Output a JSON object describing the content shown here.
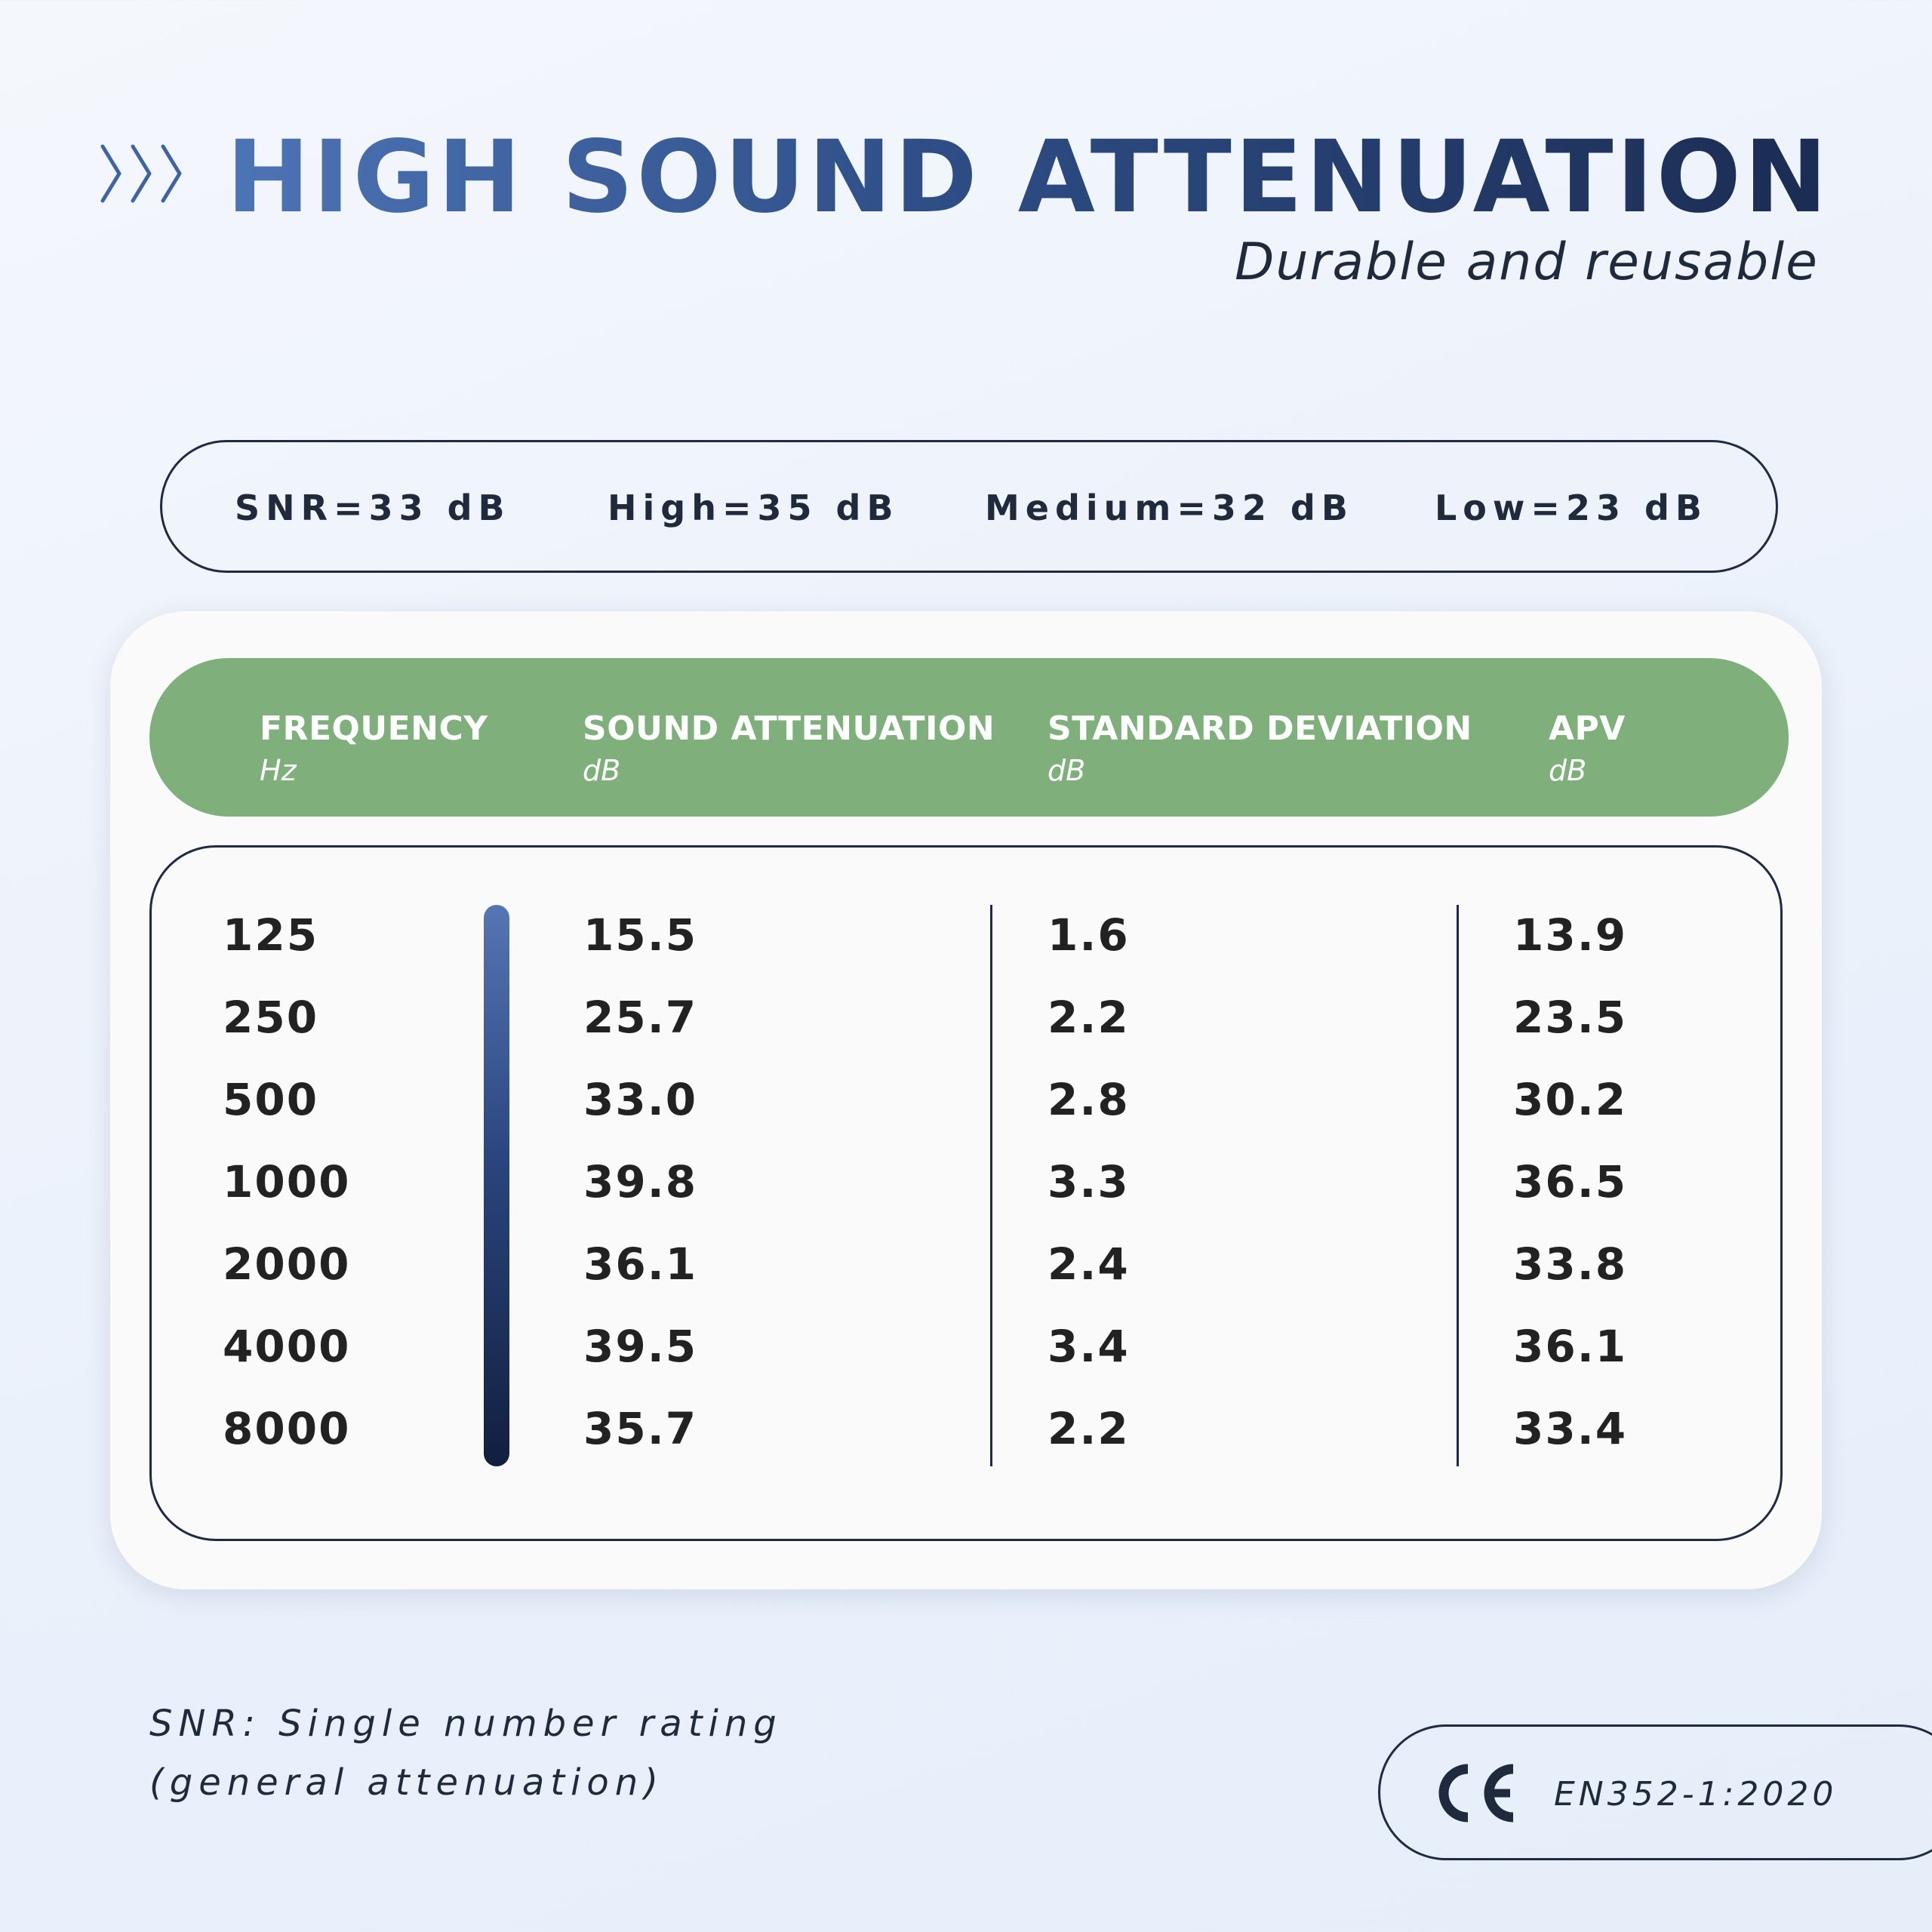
{
  "header": {
    "title": "HIGH SOUND ATTENUATION",
    "subtitle": "Durable and reusable",
    "icon": "triple-chevron-right-icon"
  },
  "ratings": {
    "snr": "SNR=33 dB",
    "high": "High=35 dB",
    "medium": "Medium=32 dB",
    "low": "Low=23 dB"
  },
  "table": {
    "columns": [
      {
        "title": "FREQUENCY",
        "unit": "Hz"
      },
      {
        "title": "SOUND ATTENUATION",
        "unit": "dB"
      },
      {
        "title": "STANDARD DEVIATION",
        "unit": "dB"
      },
      {
        "title": "APV",
        "unit": "dB"
      }
    ],
    "frequency": [
      "125",
      "250",
      "500",
      "1000",
      "2000",
      "4000",
      "8000"
    ],
    "attenuation": [
      "15.5",
      "25.7",
      "33.0",
      "39.8",
      "36.1",
      "39.5",
      "35.7"
    ],
    "std_dev": [
      "1.6",
      "2.2",
      "2.8",
      "3.3",
      "2.4",
      "3.4",
      "2.2"
    ],
    "apv": [
      "13.9",
      "23.5",
      "30.2",
      "36.5",
      "33.8",
      "36.1",
      "33.4"
    ]
  },
  "footnote": {
    "line1": "SNR: Single number rating",
    "line2": "(general attenuation)"
  },
  "certification": {
    "mark": "CE",
    "standard": "EN352-1:2020",
    "icon": "ce-mark-icon"
  },
  "colors": {
    "header_green": "#7fb07c",
    "title_blue": "#2e4d85",
    "dark_navy": "#1f2a44",
    "card_bg": "#fafafa"
  }
}
